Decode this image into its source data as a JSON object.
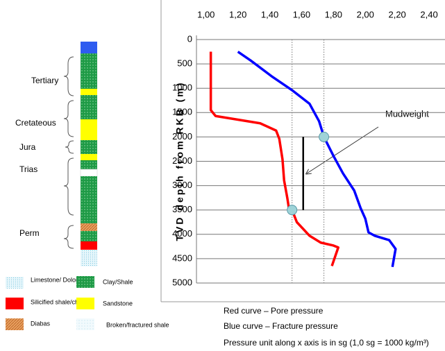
{
  "chart_data": {
    "type": "line",
    "y_title": "TVD depth from RKB (m)",
    "x_axis_position": "top",
    "y_inverted": true,
    "grid": true,
    "xlim": [
      0.94,
      2.5
    ],
    "xticks": [
      {
        "value": 1.0,
        "label": "1,00"
      },
      {
        "value": 1.2,
        "label": "1,20"
      },
      {
        "value": 1.4,
        "label": "1,40"
      },
      {
        "value": 1.6,
        "label": "1,60"
      },
      {
        "value": 1.8,
        "label": "1,80"
      },
      {
        "value": 2.0,
        "label": "2,00"
      },
      {
        "value": 2.2,
        "label": "2,20"
      },
      {
        "value": 2.4,
        "label": "2,40"
      }
    ],
    "ylim": [
      0,
      5000
    ],
    "yticks": [
      0,
      500,
      1000,
      1500,
      2000,
      2500,
      3000,
      3500,
      4000,
      4500,
      5000
    ],
    "series": [
      {
        "name": "Red curve – Pore pressure",
        "color": "#ff0000",
        "x": [
          1.03,
          1.03,
          1.06,
          1.19,
          1.34,
          1.44,
          1.46,
          1.48,
          1.49,
          1.51,
          1.52,
          1.54,
          1.57,
          1.65,
          1.72,
          1.8,
          1.83,
          1.79
        ],
        "values": [
          250,
          1450,
          1570,
          1640,
          1720,
          1870,
          2040,
          2460,
          2890,
          3250,
          3460,
          3500,
          3750,
          4030,
          4170,
          4230,
          4270,
          4650
        ]
      },
      {
        "name": "Blue curve – Fracture pressure",
        "color": "#0000ff",
        "x": [
          1.2,
          1.28,
          1.41,
          1.54,
          1.65,
          1.71,
          1.74,
          1.8,
          1.86,
          1.93,
          1.97,
          2.0,
          2.02,
          2.06,
          2.15,
          2.19,
          2.17
        ],
        "values": [
          250,
          430,
          750,
          1040,
          1320,
          1680,
          2000,
          2390,
          2750,
          3100,
          3460,
          3680,
          3960,
          4030,
          4120,
          4300,
          4670
        ]
      }
    ],
    "markers": [
      {
        "x": 1.74,
        "y": 2000
      },
      {
        "x": 1.54,
        "y": 3500
      }
    ],
    "mudweight_bar": {
      "x": 1.61,
      "y": [
        2000,
        3500
      ]
    },
    "annotation": "Mudweight",
    "note": "Pressure unit along x axis is in sg (1,0 sg = 1000 kg/m³)"
  },
  "column": {
    "periods": [
      "Tertiary",
      "Cretateous",
      "Jura",
      "Trias",
      "Perm"
    ],
    "legend": [
      "Limestone/ Dolomite",
      "Clay/Shale",
      "Silicified shale/chert",
      "Sandstone",
      "Diabas",
      "Broken/fractured shale"
    ]
  }
}
